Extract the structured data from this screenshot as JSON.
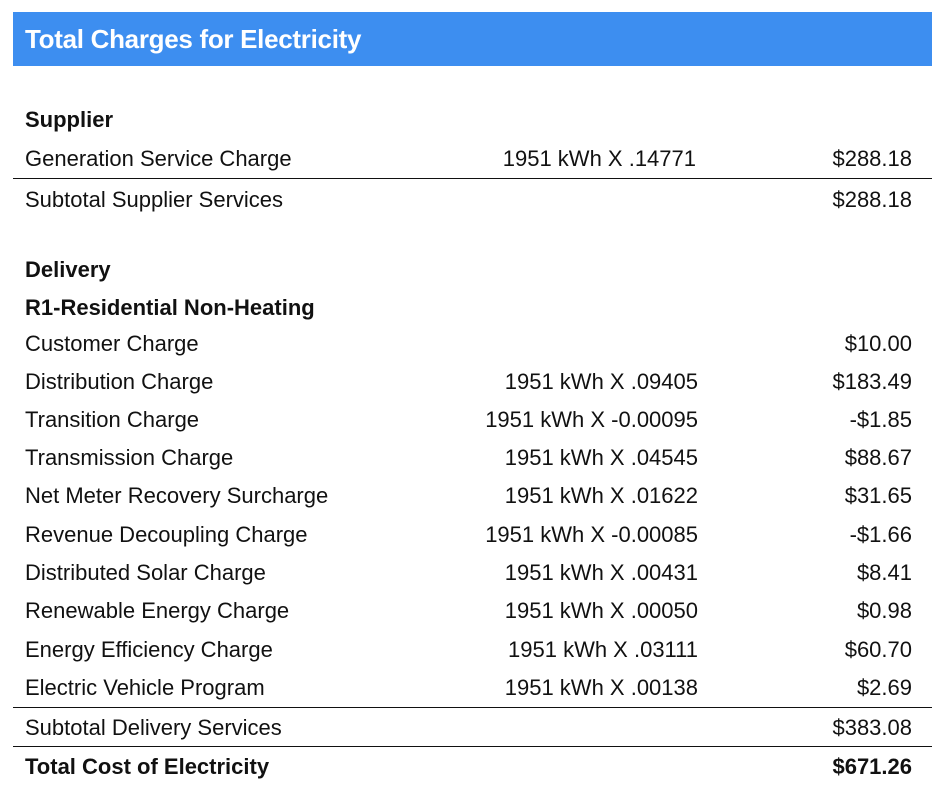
{
  "title": "Total Charges for Electricity",
  "supplier": {
    "heading": "Supplier",
    "items": [
      {
        "label": "Generation Service Charge",
        "calc": "1951 kWh  X .14771",
        "amount": "$288.18"
      }
    ],
    "subtotal": {
      "label": "Subtotal Supplier Services",
      "amount": "$288.18"
    }
  },
  "delivery": {
    "heading": "Delivery",
    "subheading": "R1-Residential Non-Heating",
    "items": [
      {
        "label": "Customer Charge",
        "calc": "",
        "amount": "$10.00"
      },
      {
        "label": "Distribution Charge",
        "calc": "1951 kWh X .09405",
        "amount": "$183.49"
      },
      {
        "label": "Transition Charge",
        "calc": "1951 kWh X -0.00095",
        "amount": "-$1.85"
      },
      {
        "label": "Transmission Charge",
        "calc": "1951 kWh X .04545",
        "amount": "$88.67"
      },
      {
        "label": "Net Meter Recovery Surcharge",
        "calc": "1951 kWh X .01622",
        "amount": "$31.65"
      },
      {
        "label": "Revenue Decoupling Charge",
        "calc": "1951 kWh X -0.00085",
        "amount": "-$1.66"
      },
      {
        "label": "Distributed Solar Charge",
        "calc": "1951 kWh X .00431",
        "amount": "$8.41"
      },
      {
        "label": "Renewable Energy Charge",
        "calc": "1951 kWh X .00050",
        "amount": "$0.98"
      },
      {
        "label": "Energy Efficiency Charge",
        "calc": "1951 kWh X .03111",
        "amount": "$60.70"
      },
      {
        "label": "Electric Vehicle Program",
        "calc": "1951 kWh X .00138",
        "amount": "$2.69"
      }
    ],
    "subtotal": {
      "label": "Subtotal Delivery Services",
      "amount": "$383.08"
    }
  },
  "total": {
    "label": "Total Cost of Electricity",
    "amount": "$671.26"
  }
}
